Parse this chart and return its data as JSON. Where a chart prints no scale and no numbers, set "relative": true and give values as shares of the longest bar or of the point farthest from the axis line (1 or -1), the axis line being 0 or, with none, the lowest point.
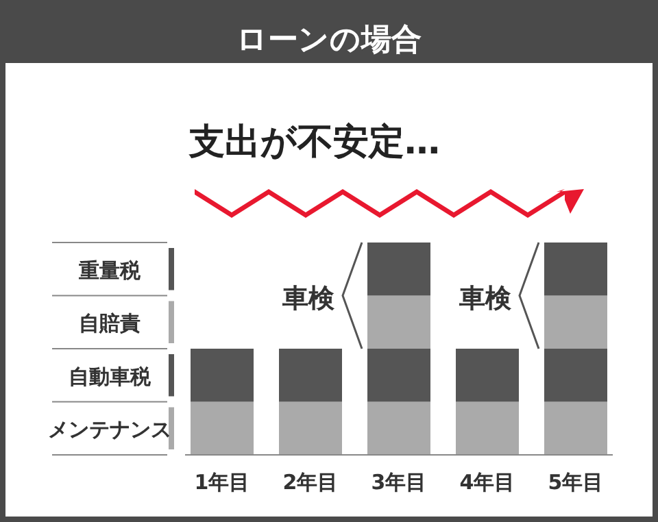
{
  "chart_data": {
    "type": "bar",
    "stacked": true,
    "relative": true,
    "legend": "left",
    "title": "ローンの場合",
    "subtitle": "支出が不安定…",
    "categories": [
      "1年目",
      "2年目",
      "3年目",
      "4年目",
      "5年目"
    ],
    "series": [
      {
        "name": "メンテナンス",
        "color": "#aaaaaa",
        "values": [
          0.25,
          0.25,
          0.25,
          0.25,
          0.25
        ]
      },
      {
        "name": "自動車税",
        "color": "#555555",
        "values": [
          0.25,
          0.25,
          0.25,
          0.25,
          0.25
        ]
      },
      {
        "name": "自賠責",
        "color": "#aaaaaa",
        "values": [
          null,
          null,
          0.25,
          null,
          0.25
        ]
      },
      {
        "name": "重量税",
        "color": "#555555",
        "values": [
          null,
          null,
          0.25,
          null,
          0.25
        ]
      }
    ],
    "annotations": [
      "車検",
      "車検"
    ]
  }
}
